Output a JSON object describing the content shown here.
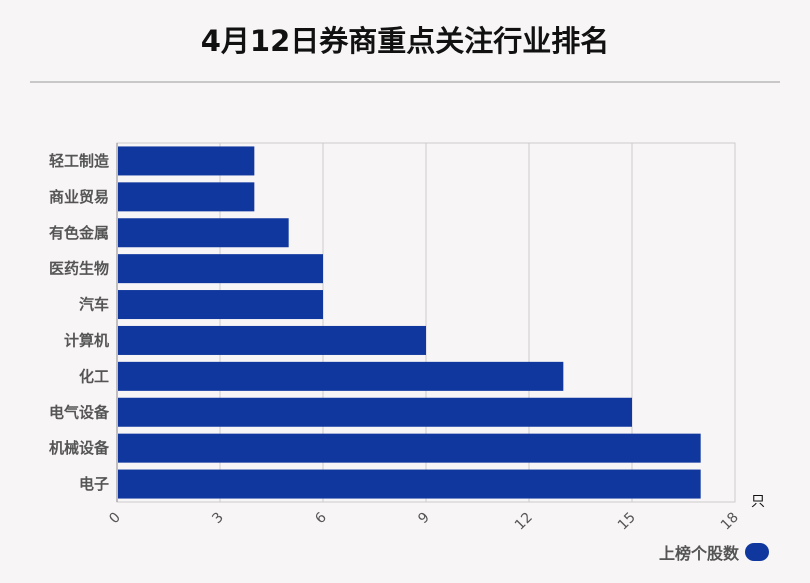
{
  "title": "4月12日券商重点关注行业排名",
  "chart_data": {
    "type": "bar",
    "orientation": "horizontal",
    "categories": [
      "轻工制造",
      "商业贸易",
      "有色金属",
      "医药生物",
      "汽车",
      "计算机",
      "化工",
      "电气设备",
      "机械设备",
      "电子"
    ],
    "series": [
      {
        "name": "上榜个股数",
        "values": [
          4,
          4,
          5,
          6,
          6,
          9,
          13,
          15,
          17,
          17
        ]
      }
    ],
    "xlim": [
      0,
      18
    ],
    "xticks": [
      0,
      3,
      6,
      9,
      12,
      15,
      18
    ],
    "x_unit": "只",
    "grid": true,
    "legend_position": "bottom-right",
    "bar_color": "#0f379e"
  }
}
